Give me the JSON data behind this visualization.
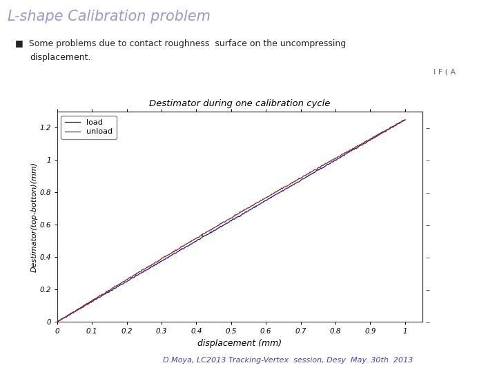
{
  "title": "Destimator during one calibration cycle",
  "xlabel": "displacement (mm)",
  "ylabel": "Destimator(top-botton)(mm)",
  "xlim": [
    0,
    1.05
  ],
  "ylim": [
    0,
    1.3
  ],
  "x_ticks": [
    0,
    0.1,
    0.2,
    0.3,
    0.4,
    0.5,
    0.6,
    0.7,
    0.8,
    0.9,
    1.0
  ],
  "y_ticks": [
    0,
    0.2,
    0.4,
    0.6,
    0.8,
    1.0,
    1.2
  ],
  "load_color": "#1a1a8c",
  "unload_color": "#8B2020",
  "slide_title": "L-shape Calibration problem",
  "bullet_text": "Some problems due to contact roughness  surface on the uncompressing\n  displacement.",
  "footer_text": "D.Moya, LC2013 Tracking-Vertex  session, Desy  May. 30th  2013",
  "legend_load": "load",
  "legend_unload": "unload",
  "bg_color": "#ffffff",
  "slide_title_color": "#9999cc",
  "footer_color": "#4444aa"
}
